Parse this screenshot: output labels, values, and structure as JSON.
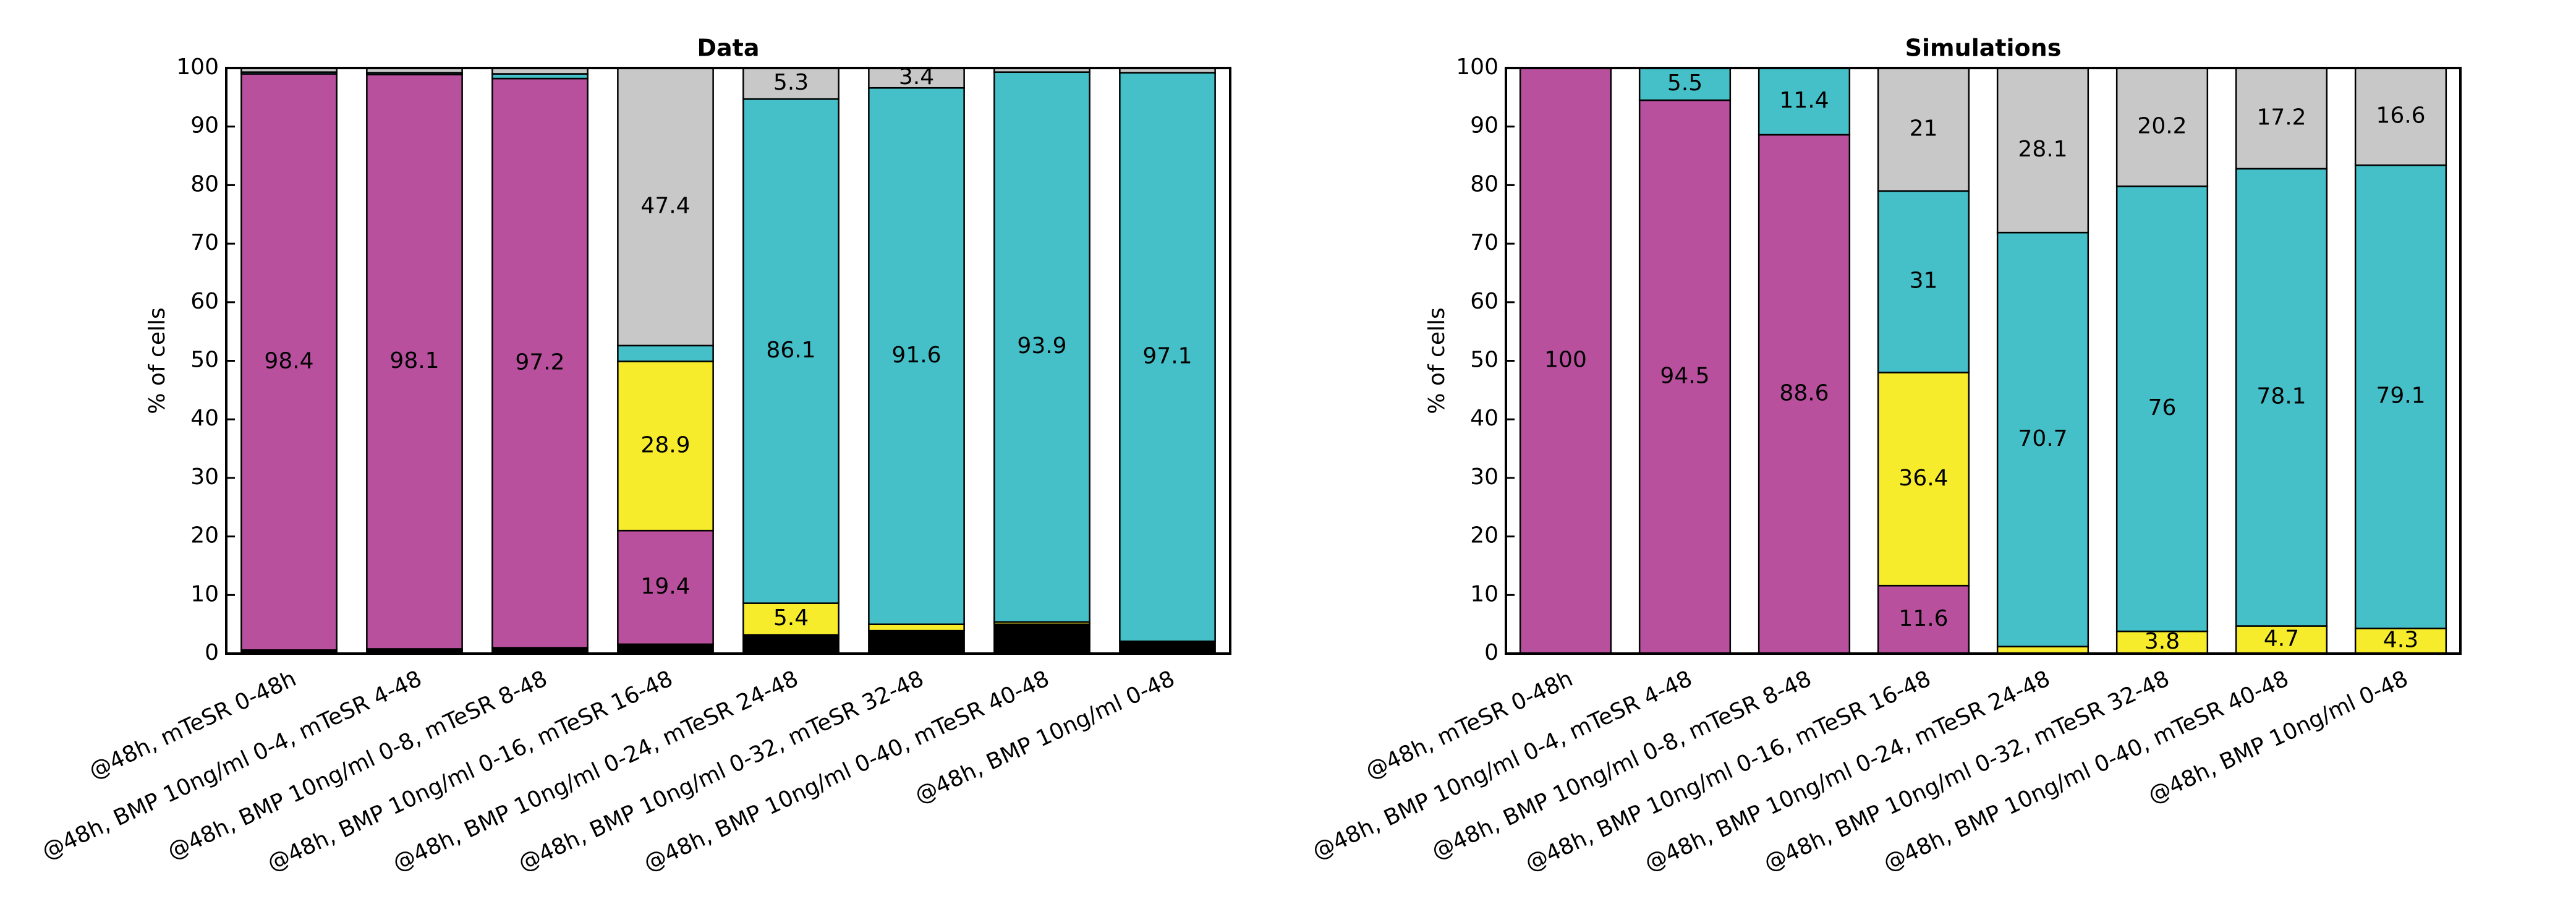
{
  "chart_data": [
    {
      "type": "stacked_bar",
      "title": "Data",
      "y_label": "% of cells",
      "categories": [
        "@48h, mTeSR 0-48h",
        "@48h, BMP 10ng/ml 0-4, mTeSR 4-48",
        "@48h, BMP 10ng/ml 0-8, mTeSR 8-48",
        "@48h, BMP 10ng/ml 0-16, mTeSR 16-48",
        "@48h, BMP 10ng/ml 0-24, mTeSR 24-48",
        "@48h, BMP 10ng/ml 0-32, mTeSR 32-48",
        "@48h, BMP 10ng/ml 0-40, mTeSR 40-48",
        "@48h, BMP 10ng/ml 0-48"
      ],
      "ylim": [
        0,
        100
      ],
      "yticks": [
        0,
        10,
        20,
        30,
        40,
        50,
        60,
        70,
        80,
        90,
        100
      ],
      "series": [
        {
          "color": "#000000",
          "values": [
            0.6,
            0.8,
            1.0,
            1.6,
            3.2,
            3.9,
            5.0,
            2.1
          ],
          "value_labels": [
            null,
            null,
            null,
            null,
            null,
            null,
            null,
            null
          ]
        },
        {
          "color": "#b8509e",
          "values": [
            98.4,
            98.1,
            97.2,
            19.4,
            0,
            0,
            0,
            0
          ],
          "value_labels": [
            "98.4",
            "98.1",
            "97.2",
            "19.4",
            null,
            null,
            null,
            null
          ]
        },
        {
          "color": "#f7ec2c",
          "values": [
            0,
            0,
            0,
            28.9,
            5.4,
            1.1,
            0.4,
            0
          ],
          "value_labels": [
            null,
            null,
            null,
            "28.9",
            "5.4",
            null,
            null,
            null
          ]
        },
        {
          "color": "#45bfc8",
          "values": [
            0.3,
            0.3,
            0.8,
            2.7,
            86.1,
            91.6,
            93.9,
            97.1
          ],
          "value_labels": [
            null,
            null,
            null,
            null,
            "86.1",
            "91.6",
            "93.9",
            "97.1"
          ]
        },
        {
          "color": "#c8c8c8",
          "values": [
            0.7,
            0.8,
            1.0,
            47.4,
            5.3,
            3.4,
            0.7,
            0.8
          ],
          "value_labels": [
            null,
            null,
            null,
            "47.4",
            "5.3",
            "3.4",
            null,
            null
          ]
        }
      ]
    },
    {
      "type": "stacked_bar",
      "title": "Simulations",
      "y_label": "% of cells",
      "categories": [
        "@48h, mTeSR 0-48h",
        "@48h, BMP 10ng/ml 0-4, mTeSR 4-48",
        "@48h, BMP 10ng/ml 0-8, mTeSR 8-48",
        "@48h, BMP 10ng/ml 0-16, mTeSR 16-48",
        "@48h, BMP 10ng/ml 0-24, mTeSR 24-48",
        "@48h, BMP 10ng/ml 0-32, mTeSR 32-48",
        "@48h, BMP 10ng/ml 0-40, mTeSR 40-48",
        "@48h, BMP 10ng/ml 0-48"
      ],
      "ylim": [
        0,
        100
      ],
      "yticks": [
        0,
        10,
        20,
        30,
        40,
        50,
        60,
        70,
        80,
        90,
        100
      ],
      "series": [
        {
          "color": "#b8509e",
          "values": [
            100,
            94.5,
            88.6,
            11.6,
            0,
            0,
            0,
            0
          ],
          "value_labels": [
            "100",
            "94.5",
            "88.6",
            "11.6",
            null,
            null,
            null,
            null
          ]
        },
        {
          "color": "#f7ec2c",
          "values": [
            0,
            0,
            0,
            36.4,
            1.2,
            3.8,
            4.7,
            4.3
          ],
          "value_labels": [
            null,
            null,
            null,
            "36.4",
            null,
            "3.8",
            "4.7",
            "4.3"
          ]
        },
        {
          "color": "#45bfc8",
          "values": [
            0,
            5.5,
            11.4,
            31,
            70.7,
            76,
            78.1,
            79.1
          ],
          "value_labels": [
            null,
            "5.5",
            "11.4",
            "31",
            "70.7",
            "76",
            "78.1",
            "79.1"
          ]
        },
        {
          "color": "#c8c8c8",
          "values": [
            0,
            0,
            0,
            21,
            28.1,
            20.2,
            17.2,
            16.6
          ],
          "value_labels": [
            null,
            null,
            null,
            "21",
            "28.1",
            "20.2",
            "17.2",
            "16.6"
          ]
        }
      ]
    }
  ]
}
